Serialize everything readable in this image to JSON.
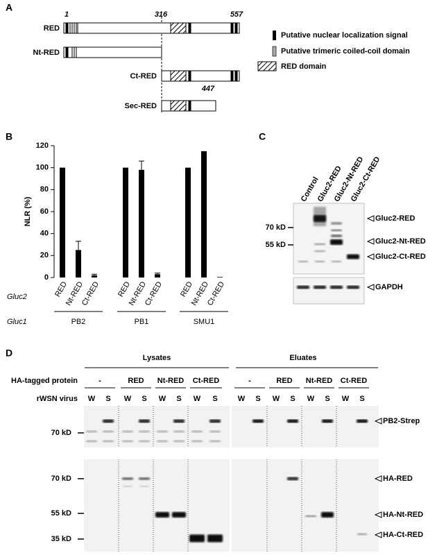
{
  "panel_a": {
    "label": "A",
    "constructs": [
      "RED",
      "Nt-RED",
      "Ct-RED",
      "Sec-RED"
    ],
    "positions": [
      1,
      316,
      557,
      447
    ],
    "legend": [
      "Putative nuclear localization signal",
      "Putative trimeric coiled-coil domain",
      "RED domain"
    ]
  },
  "chart_data": {
    "type": "bar",
    "label": "B",
    "ylabel": "NLR (%)",
    "categories": [
      "RED",
      "Nt-RED",
      "Ct-RED",
      "RED",
      "Nt-RED",
      "Ct-RED",
      "RED",
      "Nt-RED",
      "Ct-RED"
    ],
    "values": [
      100,
      25,
      2,
      100,
      98,
      3,
      100,
      115,
      0.5
    ],
    "errors": [
      null,
      8,
      1,
      null,
      8,
      1,
      null,
      null,
      null
    ],
    "groups": [
      "PB2",
      "PB1",
      "SMU1"
    ],
    "row_labels": [
      "Gluc2",
      "Gluc1"
    ],
    "color": "#000000",
    "ylim": [
      0,
      120
    ],
    "yticks": [
      0,
      20,
      40,
      60,
      80,
      100,
      120
    ]
  },
  "panel_c": {
    "label": "C",
    "lanes": [
      "Control",
      "Gluc2-RED",
      "Gluc2-Nt-RED",
      "Gluc2-Ct-RED"
    ],
    "markers": [
      "70 kD",
      "55 kD"
    ],
    "bands": [
      "Gluc2-RED",
      "Gluc2-Nt-RED",
      "Gluc2-Ct-RED",
      "GAPDH"
    ]
  },
  "panel_d": {
    "label": "D",
    "sections": [
      "Lysates",
      "Eluates"
    ],
    "row_labels": [
      "HA-tagged protein",
      "rWSN virus"
    ],
    "groups": [
      "-",
      "RED",
      "Nt-RED",
      "Ct-RED",
      "-",
      "RED",
      "Nt-RED",
      "Ct-RED"
    ],
    "lanes": [
      "W",
      "S",
      "W",
      "S",
      "W",
      "S",
      "W",
      "S",
      "W",
      "S",
      "W",
      "S",
      "W",
      "S",
      "W",
      "S"
    ],
    "markers": [
      "70 kD",
      "70 kD",
      "55 kD",
      "35 kD"
    ],
    "bands": [
      "PB2-Strep",
      "HA-RED",
      "HA-Nt-RED",
      "HA-Ct-RED"
    ]
  }
}
